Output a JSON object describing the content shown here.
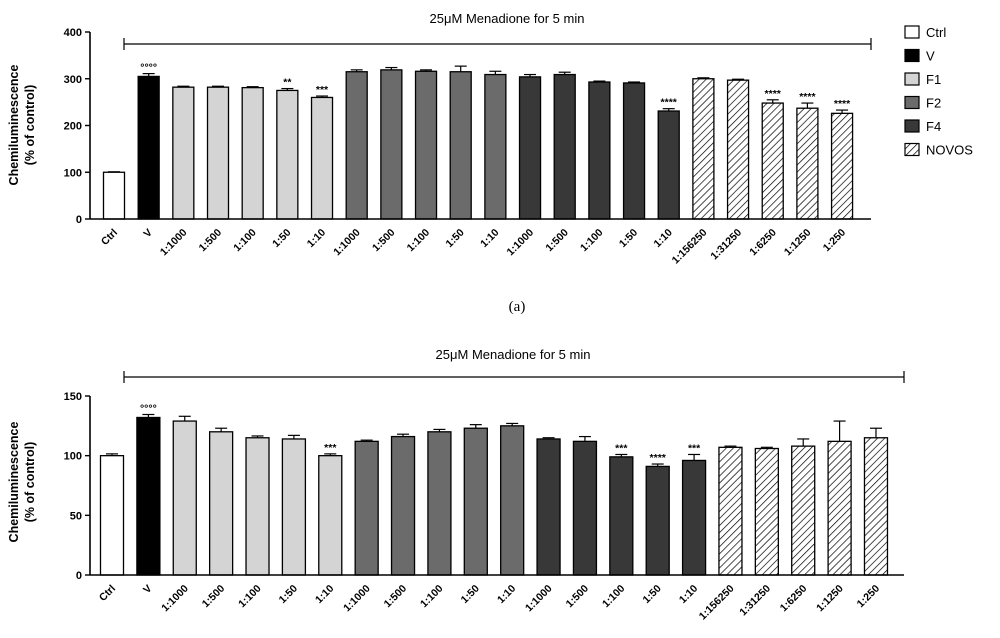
{
  "legend": [
    {
      "group": "ctrl",
      "label": "Ctrl"
    },
    {
      "group": "v",
      "label": "V"
    },
    {
      "group": "f1",
      "label": "F1"
    },
    {
      "group": "f2",
      "label": "F2"
    },
    {
      "group": "f4",
      "label": "F4"
    },
    {
      "group": "novos",
      "label": "NOVOS"
    }
  ],
  "colors": {
    "ctrl": "#ffffff",
    "v": "#000000",
    "f1": "#d4d4d4",
    "f2": "#6b6b6b",
    "f4": "#383838",
    "novos_hatch": "#000000"
  },
  "chart_data": [
    {
      "type": "bar",
      "panel_label": "(a)",
      "ylabel": "Chemiluminescence\n(% of control)",
      "ylim": [
        0,
        400
      ],
      "yticks": [
        0,
        100,
        200,
        300,
        400
      ],
      "bracket_label": "25μM Menadione for 5 min",
      "categories": [
        "Ctrl",
        "V",
        "1:1000",
        "1:500",
        "1:100",
        "1:50",
        "1:10",
        "1:1000",
        "1:500",
        "1:100",
        "1:50",
        "1:10",
        "1:1000",
        "1:500",
        "1:100",
        "1:50",
        "1:10",
        "1:156250",
        "1:31250",
        "1:6250",
        "1:1250",
        "1:250"
      ],
      "groups": [
        "ctrl",
        "v",
        "f1",
        "f1",
        "f1",
        "f1",
        "f1",
        "f2",
        "f2",
        "f2",
        "f2",
        "f2",
        "f4",
        "f4",
        "f4",
        "f4",
        "f4",
        "novos",
        "novos",
        "novos",
        "novos",
        "novos"
      ],
      "values": [
        100,
        305,
        282,
        282,
        281,
        275,
        260,
        315,
        319,
        316,
        315,
        309,
        304,
        309,
        293,
        291,
        231,
        300,
        297,
        248,
        237,
        226
      ],
      "errors": [
        1,
        6,
        2,
        2,
        2,
        4,
        3,
        4,
        5,
        3,
        12,
        7,
        5,
        5,
        2,
        2,
        5,
        2,
        2,
        7,
        11,
        7
      ],
      "significance": [
        "",
        "°°°°",
        "",
        "",
        "",
        "**",
        "***",
        "",
        "",
        "",
        "",
        "",
        "",
        "",
        "",
        "",
        "****",
        "",
        "",
        "****",
        "****",
        "****"
      ]
    },
    {
      "type": "bar",
      "panel_label": "",
      "ylabel": "Chemiluminescence\n(% of control)",
      "ylim": [
        0,
        150
      ],
      "yticks": [
        0,
        50,
        100,
        150
      ],
      "bracket_label": "25μM Menadione for 5 min",
      "categories": [
        "Ctrl",
        "V",
        "1:1000",
        "1:500",
        "1:100",
        "1:50",
        "1:10",
        "1:1000",
        "1:500",
        "1:100",
        "1:50",
        "1:10",
        "1:1000",
        "1:500",
        "1:100",
        "1:50",
        "1:10",
        "1:156250",
        "1:31250",
        "1:6250",
        "1:1250",
        "1:250"
      ],
      "groups": [
        "ctrl",
        "v",
        "f1",
        "f1",
        "f1",
        "f1",
        "f1",
        "f2",
        "f2",
        "f2",
        "f2",
        "f2",
        "f4",
        "f4",
        "f4",
        "f4",
        "f4",
        "novos",
        "novos",
        "novos",
        "novos",
        "novos"
      ],
      "values": [
        100,
        132,
        129,
        120,
        115,
        114,
        100,
        112,
        116,
        120,
        123,
        125,
        114,
        112,
        99,
        91,
        96,
        107,
        106,
        108,
        112,
        115
      ],
      "errors": [
        1.5,
        2.5,
        4,
        3,
        1.5,
        3,
        1.5,
        1,
        2,
        2,
        3,
        2,
        1,
        4,
        2,
        2,
        5,
        1,
        1,
        6,
        17,
        8
      ],
      "significance": [
        "",
        "°°°°",
        "",
        "",
        "",
        "",
        "***",
        "",
        "",
        "",
        "",
        "",
        "",
        "",
        "***",
        "****",
        "***",
        "",
        "",
        "",
        "",
        ""
      ]
    }
  ]
}
